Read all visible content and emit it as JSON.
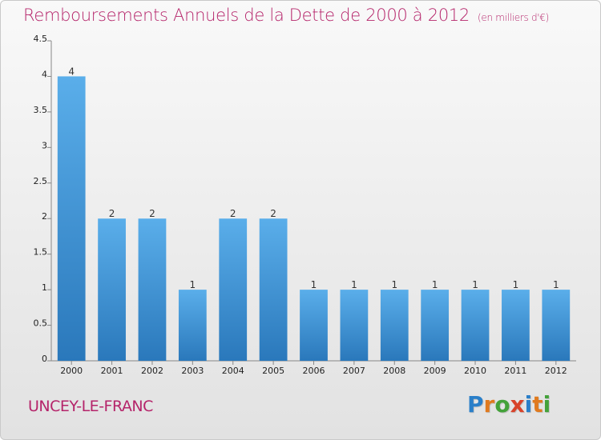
{
  "header": {
    "title": "Remboursements Annuels de la Dette de 2000 à 2012",
    "unit": "(en milliers d'€)"
  },
  "footer": {
    "commune": "UNCEY-LE-FRANC",
    "brand_letters": [
      "P",
      "r",
      "o",
      "x",
      "i",
      "t",
      "i"
    ],
    "brand_colors": [
      "#2a7fc9",
      "#e07a1f",
      "#44a23a",
      "#d8432a",
      "#2a7fc9",
      "#e07a1f",
      "#44a23a"
    ]
  },
  "colors": {
    "bar_light": "#5aaeea",
    "bar_dark": "#2a78bb",
    "title": "#b5246a"
  },
  "chart_data": {
    "type": "bar",
    "title": "Remboursements Annuels de la Dette de 2000 à 2012",
    "categories": [
      "2000",
      "2001",
      "2002",
      "2003",
      "2004",
      "2005",
      "2006",
      "2007",
      "2008",
      "2009",
      "2010",
      "2011",
      "2012"
    ],
    "values": [
      4,
      2,
      2,
      1,
      2,
      2,
      1,
      1,
      1,
      1,
      1,
      1,
      1
    ],
    "data_labels": [
      "4",
      "2",
      "2",
      "1",
      "2",
      "2",
      "1",
      "1",
      "1",
      "1",
      "1",
      "1",
      "1"
    ],
    "y_ticks": [
      0,
      0.5,
      1,
      1.5,
      2,
      2.5,
      3,
      3.5,
      4,
      4.5
    ],
    "y_tick_labels": [
      "0",
      "0.5",
      "1",
      "1.5",
      "2",
      "2.5",
      "3",
      "3.5",
      "4",
      "4.5"
    ],
    "ylim": [
      0,
      4.5
    ],
    "xlabel": "",
    "ylabel": "",
    "grid": false,
    "legend": "none"
  }
}
